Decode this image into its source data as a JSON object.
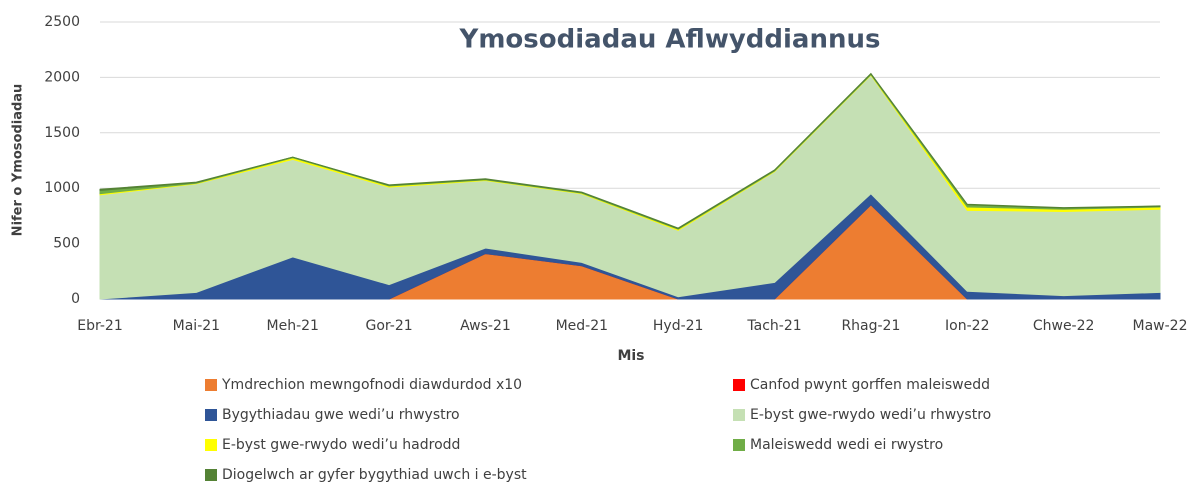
{
  "chart_data": {
    "type": "stacked_area",
    "title": "Ymosodiadau Aflwyddiannus",
    "x_label": "Mis",
    "y_label": "Nifer o Ymosodiadau",
    "categories": [
      "Ebr-21",
      "Mai-21",
      "Meh-21",
      "Gor-21",
      "Aws-21",
      "Med-21",
      "Hyd-21",
      "Tach-21",
      "Rhag-21",
      "Ion-22",
      "Chwe-22",
      "Maw-22"
    ],
    "ylim": [
      0,
      2500
    ],
    "yticks": [
      0,
      500,
      1000,
      1500,
      2000,
      2500
    ],
    "grid": true,
    "legend": "bottom",
    "series": [
      {
        "name": "Ymdrechion mewngofnodi diawdurdod x10",
        "color": "#ed7d31",
        "values": [
          0,
          0,
          0,
          0,
          410,
          300,
          0,
          0,
          850,
          0,
          0,
          0
        ]
      },
      {
        "name": "Canfod pwynt gorffen maleiswedd",
        "color": "#ff0000",
        "values": [
          0,
          0,
          0,
          0,
          0,
          0,
          0,
          0,
          0,
          0,
          0,
          0
        ]
      },
      {
        "name": "Bygythiadau gwe wedi’u rhwystro",
        "color": "#2f5597",
        "values": [
          0,
          60,
          380,
          130,
          50,
          30,
          20,
          150,
          100,
          70,
          30,
          60
        ]
      },
      {
        "name": "E-byst gwe-rwydo wedi’u rhwystro",
        "color": "#c5e0b4",
        "values": [
          940,
          980,
          880,
          880,
          610,
          620,
          600,
          1000,
          1070,
          730,
          760,
          750
        ]
      },
      {
        "name": "E-byst gwe-rwydo wedi’u hadrodd",
        "color": "#ffff00",
        "values": [
          10,
          5,
          15,
          10,
          5,
          5,
          10,
          5,
          5,
          30,
          20,
          20
        ]
      },
      {
        "name": "Maleiswedd wedi ei rwystro",
        "color": "#70ad47",
        "values": [
          30,
          5,
          5,
          5,
          5,
          5,
          5,
          5,
          5,
          20,
          10,
          5
        ]
      },
      {
        "name": "Diogelwch ar gyfer bygythiad uwch i e-byst",
        "color": "#548235",
        "values": [
          10,
          5,
          0,
          5,
          5,
          5,
          5,
          5,
          5,
          5,
          5,
          5
        ]
      }
    ]
  }
}
